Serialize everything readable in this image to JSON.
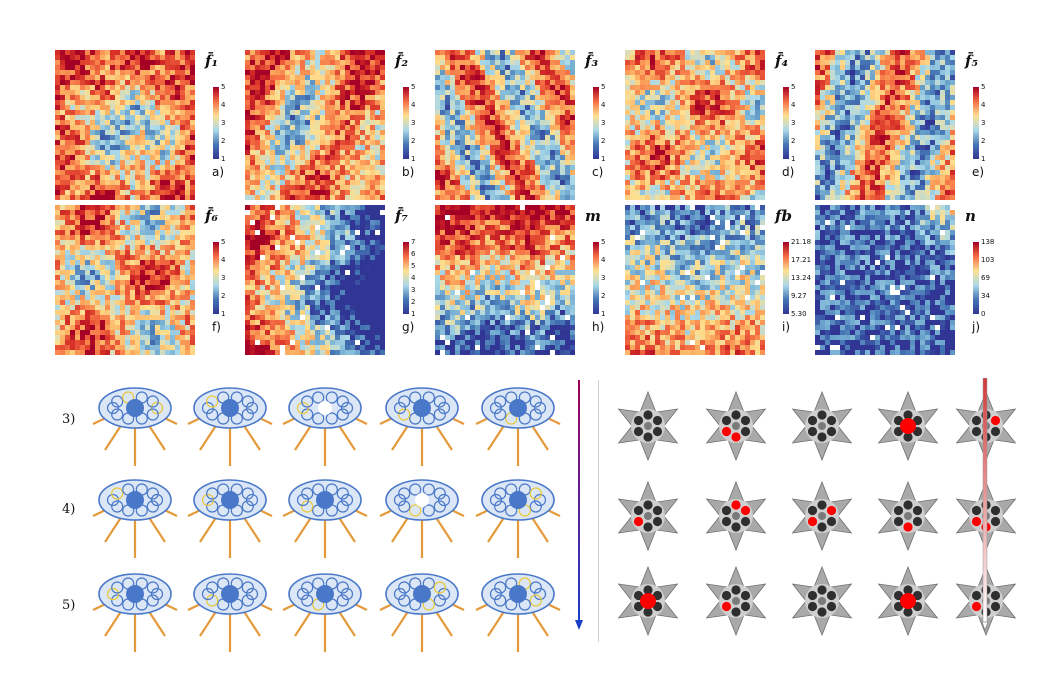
{
  "panels": [
    {
      "title": "f̄₁",
      "ticks": [
        "5",
        "4",
        "3",
        "2",
        "1"
      ],
      "sub": "a)",
      "cmap": "rdylbu"
    },
    {
      "title": "f̄₂",
      "ticks": [
        "5",
        "4",
        "3",
        "2",
        "1"
      ],
      "sub": "b)",
      "cmap": "rdylbu"
    },
    {
      "title": "f̄₃",
      "ticks": [
        "5",
        "4",
        "3",
        "2",
        "1"
      ],
      "sub": "c)",
      "cmap": "rdylbu"
    },
    {
      "title": "f̄₄",
      "ticks": [
        "5",
        "4",
        "3",
        "2",
        "1"
      ],
      "sub": "d)",
      "cmap": "rdylbu"
    },
    {
      "title": "f̄₅",
      "ticks": [
        "5",
        "4",
        "3",
        "2",
        "1"
      ],
      "sub": "e)",
      "cmap": "rdylbu"
    },
    {
      "title": "f̄₆",
      "ticks": [
        "5",
        "4",
        "3",
        "2",
        "1"
      ],
      "sub": "f)",
      "cmap": "rdylbu"
    },
    {
      "title": "f̄₇",
      "ticks": [
        "7",
        "6",
        "5",
        "4",
        "3",
        "2",
        "1"
      ],
      "sub": "g)",
      "cmap": "rdylbu"
    },
    {
      "title": "m",
      "ticks": [
        "5",
        "4",
        "3",
        "2",
        "1"
      ],
      "sub": "h)",
      "cmap": "rdylbu"
    },
    {
      "title": "fb",
      "ticks": [
        "21.18",
        "17.21",
        "13.24",
        "9.27",
        "5.30"
      ],
      "sub": "i)",
      "cmap": "rdylbu"
    },
    {
      "title": "n",
      "ticks": [
        "138",
        "103",
        "69",
        "34",
        "0"
      ],
      "sub": "j)",
      "cmap": "rdylbu"
    }
  ],
  "row_labels": [
    "3)",
    "4)",
    "5)"
  ],
  "colors": {
    "red": "#b2182b",
    "blue": "#2b4f9e",
    "yellow": "#fee090",
    "shell_blue": "#4a78c8",
    "shell_orange": "#e49a3a",
    "star_grey": "#8a8a8a",
    "node_dark": "#2f2f2f",
    "node_red": "#ff0000",
    "arrow_left_top": "#a0005a",
    "arrow_left_bottom": "#1a3ec8",
    "bar_right_top": "#d23a3a",
    "bar_right_bottom": "#ffffff"
  },
  "icons": [
    "shell-structure-icon",
    "star-plate-icon",
    "down-arrow-icon"
  ]
}
